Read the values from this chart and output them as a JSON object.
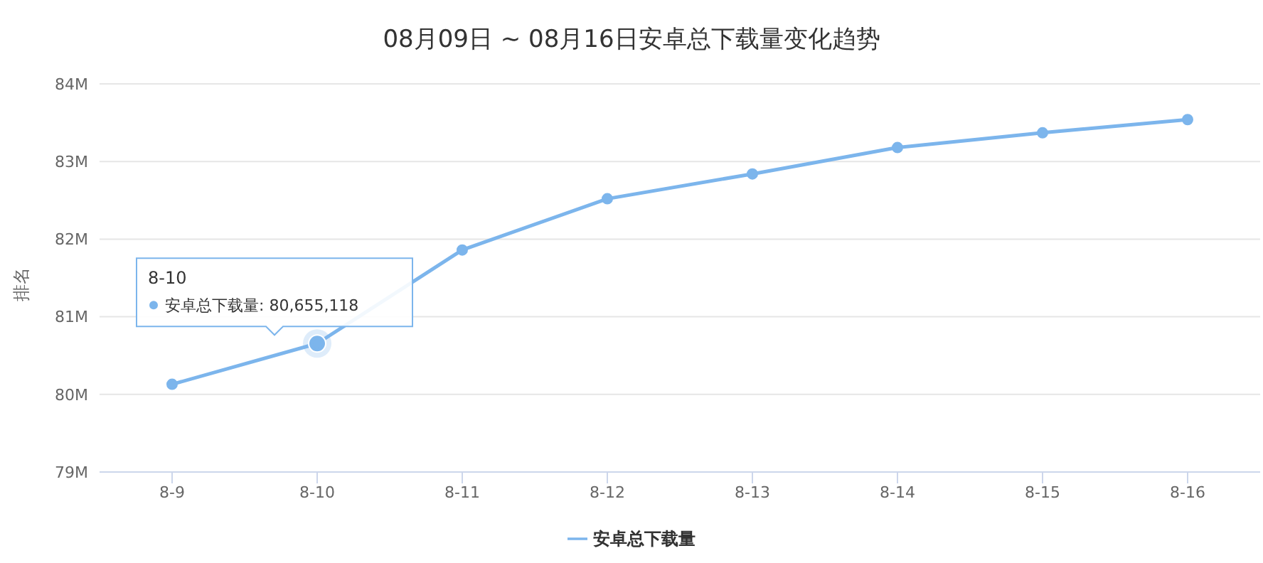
{
  "chart_data": {
    "type": "line",
    "title": "08月09日 ~ 08月16日安卓总下载量变化趋势",
    "ylabel": "排名",
    "categories": [
      "8-9",
      "8-10",
      "8-11",
      "8-12",
      "8-13",
      "8-14",
      "8-15",
      "8-16"
    ],
    "series": [
      {
        "name": "安卓总下载量",
        "color": "#7cb5ec",
        "values": [
          80.13,
          80.655118,
          81.86,
          82.52,
          82.84,
          83.18,
          83.37,
          83.54
        ]
      }
    ],
    "ylim": [
      79,
      84
    ],
    "yticks": [
      {
        "value": 79,
        "label": "79M"
      },
      {
        "value": 80,
        "label": "80M"
      },
      {
        "value": 81,
        "label": "81M"
      },
      {
        "value": 82,
        "label": "82M"
      },
      {
        "value": 83,
        "label": "83M"
      },
      {
        "value": 84,
        "label": "84M"
      }
    ],
    "annotations": [
      "8-10",
      {
        "text": "安卓总下载量: 80,655,118",
        "x": "8-10",
        "y": 80.655118
      }
    ],
    "grid": "y",
    "legend": "bottom",
    "marker": "circle",
    "line_style": "solid"
  }
}
